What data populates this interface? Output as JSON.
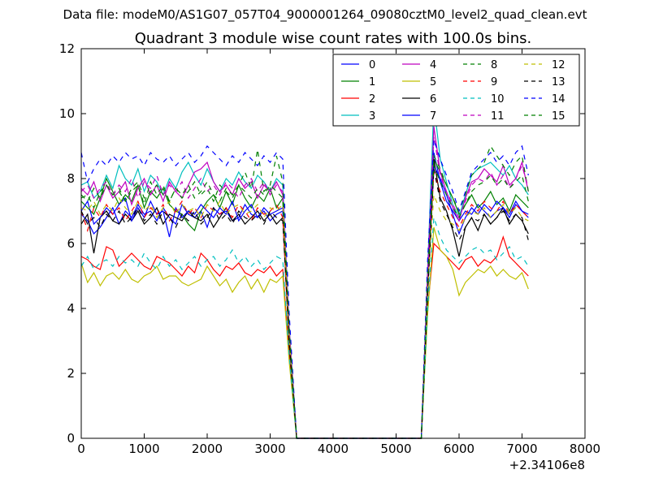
{
  "suptitle": "Data file: modeM0/AS1G07_057T04_9000001264_09080cztM0_level2_quad_clean.evt",
  "chart_data": {
    "type": "line",
    "title": "Quadrant 3 module wise count rates with 100.0s bins.",
    "xlabel": "",
    "ylabel": "",
    "xlim": [
      0,
      8000
    ],
    "ylim": [
      0,
      12
    ],
    "x_offset_label": "+2.34106e8",
    "xticks": [
      0,
      1000,
      2000,
      3000,
      4000,
      5000,
      6000,
      7000,
      8000
    ],
    "yticks": [
      0,
      2,
      4,
      6,
      8,
      10,
      12
    ],
    "grid": false,
    "legend_position": "top-right",
    "legend_columns": 4,
    "x": [
      0,
      100,
      200,
      300,
      400,
      500,
      600,
      700,
      800,
      900,
      1000,
      1100,
      1200,
      1300,
      1400,
      1500,
      1600,
      1700,
      1800,
      1900,
      2000,
      2100,
      2200,
      2300,
      2400,
      2500,
      2600,
      2700,
      2800,
      2900,
      3000,
      3100,
      3200,
      3300,
      3420,
      5400,
      5500,
      5600,
      5700,
      5800,
      5900,
      6000,
      6100,
      6200,
      6300,
      6400,
      6500,
      6600,
      6700,
      6800,
      6900,
      7000,
      7100
    ],
    "series": [
      {
        "name": "0",
        "color": "#0000ff",
        "dash": "solid",
        "values": [
          6.9,
          6.7,
          6.3,
          6.5,
          6.8,
          7.1,
          6.6,
          7.0,
          6.8,
          7.2,
          6.9,
          7.0,
          6.7,
          7.1,
          6.8,
          6.6,
          7.2,
          6.9,
          6.8,
          7.0,
          6.5,
          7.1,
          6.9,
          7.0,
          6.7,
          6.8,
          7.2,
          6.9,
          6.8,
          7.0,
          6.7,
          6.9,
          7.0,
          3.0,
          0,
          0,
          4.5,
          8.8,
          7.9,
          7.3,
          7.0,
          6.7,
          7.0,
          6.9,
          7.2,
          7.0,
          6.8,
          7.0,
          7.1,
          6.9,
          7.3,
          7.0,
          6.8
        ]
      },
      {
        "name": "1",
        "color": "#008000",
        "dash": "solid",
        "values": [
          7.3,
          7.1,
          6.9,
          7.4,
          8.0,
          7.6,
          7.2,
          7.5,
          7.3,
          7.8,
          7.1,
          7.6,
          7.4,
          7.7,
          7.2,
          7.0,
          6.9,
          6.6,
          6.4,
          7.0,
          7.3,
          7.5,
          7.1,
          7.6,
          7.2,
          7.8,
          7.4,
          7.1,
          7.5,
          7.3,
          7.7,
          7.1,
          7.4,
          3.2,
          0,
          0,
          4.8,
          8.6,
          8.2,
          7.8,
          7.4,
          6.9,
          7.2,
          7.5,
          7.1,
          7.3,
          7.6,
          7.2,
          7.4,
          7.0,
          7.5,
          7.3,
          7.1
        ]
      },
      {
        "name": "2",
        "color": "#ff0000",
        "dash": "solid",
        "values": [
          5.6,
          5.5,
          5.3,
          5.2,
          5.9,
          5.8,
          5.3,
          5.5,
          5.7,
          5.5,
          5.3,
          5.2,
          5.6,
          5.5,
          5.4,
          5.2,
          5.0,
          5.3,
          5.1,
          5.7,
          5.5,
          5.2,
          5.0,
          5.3,
          5.2,
          5.4,
          5.1,
          5.0,
          5.2,
          5.1,
          5.3,
          5.0,
          5.2,
          2.6,
          0,
          0,
          4.0,
          6.0,
          5.8,
          5.6,
          5.4,
          5.2,
          5.5,
          5.6,
          5.3,
          5.5,
          5.4,
          5.6,
          6.2,
          5.6,
          5.4,
          5.2,
          5.0
        ]
      },
      {
        "name": "3",
        "color": "#00bfbf",
        "dash": "solid",
        "values": [
          7.8,
          7.9,
          7.4,
          7.6,
          8.1,
          7.7,
          8.4,
          8.0,
          7.8,
          8.3,
          7.6,
          8.1,
          7.9,
          7.5,
          8.0,
          7.7,
          8.2,
          8.5,
          8.1,
          7.8,
          8.3,
          7.9,
          7.6,
          8.0,
          7.8,
          8.2,
          7.9,
          7.7,
          8.1,
          7.9,
          7.6,
          8.0,
          7.8,
          3.5,
          0,
          0,
          5.2,
          10.3,
          8.6,
          7.9,
          7.2,
          6.8,
          7.5,
          8.1,
          8.3,
          8.4,
          8.5,
          8.3,
          8.1,
          8.4,
          8.0,
          7.8,
          7.5
        ]
      },
      {
        "name": "4",
        "color": "#bf00bf",
        "dash": "solid",
        "values": [
          7.7,
          7.5,
          7.9,
          7.3,
          7.8,
          7.4,
          7.6,
          7.9,
          7.2,
          7.7,
          8.0,
          7.5,
          7.8,
          7.3,
          7.9,
          7.6,
          7.4,
          7.8,
          8.2,
          8.3,
          8.5,
          7.9,
          7.6,
          7.8,
          7.5,
          8.0,
          7.7,
          7.9,
          7.4,
          7.8,
          7.6,
          7.9,
          7.5,
          3.4,
          0,
          0,
          5.0,
          9.6,
          8.2,
          7.6,
          7.1,
          6.7,
          7.4,
          7.9,
          8.0,
          8.3,
          8.1,
          7.9,
          8.4,
          7.8,
          8.0,
          8.5,
          7.6
        ]
      },
      {
        "name": "5",
        "color": "#bfbf00",
        "dash": "solid",
        "values": [
          5.4,
          4.8,
          5.1,
          4.7,
          5.0,
          5.1,
          4.9,
          5.2,
          4.9,
          4.8,
          5.0,
          5.1,
          5.3,
          4.9,
          5.0,
          5.0,
          4.8,
          4.7,
          4.8,
          4.9,
          5.3,
          5.0,
          4.7,
          4.9,
          4.5,
          4.8,
          5.0,
          4.6,
          4.9,
          4.5,
          4.9,
          4.8,
          5.0,
          2.4,
          0,
          0,
          3.8,
          6.5,
          5.8,
          5.6,
          5.2,
          4.4,
          4.8,
          5.0,
          5.2,
          5.1,
          5.3,
          5.0,
          5.2,
          5.0,
          4.9,
          5.1,
          4.6
        ]
      },
      {
        "name": "6",
        "color": "#000000",
        "dash": "solid",
        "values": [
          6.6,
          6.9,
          5.7,
          6.8,
          7.0,
          6.7,
          6.6,
          6.9,
          6.7,
          7.0,
          6.6,
          6.8,
          7.1,
          6.6,
          6.9,
          6.8,
          6.7,
          7.0,
          6.8,
          6.7,
          6.9,
          6.5,
          6.8,
          7.1,
          6.7,
          6.9,
          6.6,
          6.8,
          7.0,
          6.7,
          6.9,
          6.6,
          6.8,
          3.0,
          0,
          0,
          4.4,
          8.6,
          7.4,
          7.0,
          6.4,
          5.6,
          6.5,
          6.8,
          6.4,
          6.9,
          6.6,
          6.8,
          7.1,
          6.6,
          6.9,
          6.7,
          6.3
        ]
      },
      {
        "name": "7",
        "color": "#0000ff",
        "dash": "solid",
        "values": [
          7.0,
          7.3,
          6.6,
          6.8,
          7.1,
          6.9,
          7.2,
          7.4,
          6.7,
          7.1,
          6.8,
          7.3,
          6.9,
          7.0,
          6.2,
          7.1,
          6.8,
          7.0,
          6.9,
          7.2,
          7.0,
          6.8,
          7.1,
          6.9,
          7.3,
          6.7,
          7.0,
          7.2,
          6.8,
          7.1,
          6.9,
          7.0,
          7.1,
          3.1,
          0,
          0,
          4.6,
          8.4,
          8.0,
          7.5,
          6.9,
          6.3,
          6.8,
          7.1,
          6.9,
          7.2,
          7.0,
          7.3,
          7.1,
          6.8,
          7.2,
          7.0,
          6.9
        ]
      },
      {
        "name": "8",
        "color": "#008000",
        "dash": "dashed",
        "values": [
          7.4,
          7.5,
          7.1,
          7.6,
          7.8,
          7.5,
          7.7,
          7.3,
          7.6,
          7.8,
          7.2,
          7.9,
          7.5,
          7.8,
          7.3,
          7.7,
          7.4,
          7.6,
          7.9,
          7.5,
          7.7,
          7.3,
          7.8,
          7.6,
          7.4,
          7.8,
          8.2,
          7.7,
          8.9,
          7.6,
          7.8,
          8.7,
          7.9,
          3.5,
          0,
          0,
          5.1,
          8.7,
          8.3,
          7.8,
          7.4,
          7.0,
          7.5,
          8.1,
          8.3,
          8.5,
          9.0,
          8.7,
          8.4,
          8.1,
          8.5,
          8.7,
          7.6
        ]
      },
      {
        "name": "9",
        "color": "#ff0000",
        "dash": "dashed",
        "values": [
          7.0,
          6.4,
          7.1,
          6.8,
          7.2,
          6.9,
          7.1,
          6.7,
          7.0,
          7.3,
          6.8,
          7.1,
          6.9,
          7.2,
          6.7,
          7.0,
          7.3,
          6.9,
          7.1,
          6.8,
          7.2,
          7.0,
          6.9,
          7.1,
          6.8,
          7.2,
          7.0,
          6.7,
          7.1,
          6.9,
          7.0,
          7.2,
          6.8,
          3.1,
          0,
          0,
          4.7,
          8.2,
          7.6,
          7.2,
          6.8,
          6.5,
          6.9,
          7.2,
          7.0,
          7.3,
          7.1,
          7.0,
          7.3,
          6.9,
          7.2,
          7.0,
          6.8
        ]
      },
      {
        "name": "10",
        "color": "#00bfbf",
        "dash": "dashed",
        "values": [
          5.3,
          5.6,
          5.2,
          5.4,
          5.5,
          5.3,
          5.6,
          5.4,
          5.5,
          5.3,
          5.7,
          5.4,
          5.2,
          5.6,
          5.3,
          5.5,
          5.2,
          5.4,
          5.6,
          5.3,
          5.5,
          5.6,
          5.3,
          5.5,
          5.8,
          5.4,
          5.6,
          5.3,
          5.5,
          5.2,
          5.4,
          5.6,
          5.5,
          2.6,
          0,
          0,
          4.0,
          6.8,
          6.2,
          5.8,
          5.6,
          5.4,
          5.6,
          5.8,
          5.9,
          5.7,
          5.8,
          5.5,
          5.7,
          5.9,
          5.5,
          5.6,
          5.3
        ]
      },
      {
        "name": "11",
        "color": "#bf00bf",
        "dash": "dashed",
        "values": [
          7.6,
          7.8,
          7.4,
          7.7,
          7.9,
          7.5,
          7.8,
          7.6,
          8.0,
          7.4,
          7.9,
          7.7,
          8.1,
          7.5,
          7.8,
          7.6,
          7.9,
          7.4,
          7.7,
          8.0,
          7.6,
          7.8,
          7.5,
          7.9,
          7.7,
          7.4,
          7.8,
          8.0,
          7.6,
          7.9,
          7.5,
          7.8,
          7.6,
          3.4,
          0,
          0,
          5.0,
          9.3,
          8.1,
          7.6,
          7.2,
          6.8,
          7.3,
          7.8,
          8.0,
          7.9,
          8.2,
          7.8,
          8.1,
          7.7,
          8.0,
          8.4,
          7.7
        ]
      },
      {
        "name": "12",
        "color": "#bfbf00",
        "dash": "dashed",
        "values": [
          7.1,
          7.0,
          7.3,
          6.9,
          7.2,
          7.0,
          7.4,
          7.1,
          6.9,
          7.3,
          7.0,
          7.2,
          6.8,
          7.1,
          7.3,
          6.9,
          7.2,
          7.0,
          7.1,
          6.8,
          7.2,
          7.0,
          7.3,
          6.9,
          7.1,
          7.2,
          6.9,
          7.0,
          7.2,
          6.8,
          7.1,
          7.0,
          7.2,
          3.2,
          0,
          0,
          4.6,
          7.5,
          7.0,
          6.7,
          6.6,
          6.4,
          6.8,
          7.0,
          6.9,
          7.1,
          6.8,
          7.0,
          7.2,
          6.9,
          7.1,
          6.8,
          6.7
        ]
      },
      {
        "name": "13",
        "color": "#000000",
        "dash": "dashed",
        "values": [
          7.0,
          6.6,
          6.8,
          6.5,
          6.9,
          6.7,
          7.0,
          6.6,
          6.8,
          7.1,
          6.7,
          6.9,
          6.6,
          7.0,
          6.8,
          6.5,
          6.9,
          6.7,
          7.0,
          6.6,
          6.8,
          7.1,
          6.7,
          6.9,
          6.6,
          7.0,
          6.8,
          6.7,
          6.9,
          6.6,
          7.0,
          6.8,
          6.7,
          3.0,
          0,
          0,
          4.4,
          8.3,
          7.3,
          6.9,
          6.5,
          6.1,
          6.5,
          6.8,
          6.7,
          6.9,
          6.6,
          6.8,
          7.0,
          6.7,
          6.9,
          6.8,
          6.1
        ]
      },
      {
        "name": "14",
        "color": "#0000ff",
        "dash": "dashed",
        "values": [
          8.8,
          7.9,
          8.3,
          8.6,
          8.4,
          8.7,
          8.5,
          8.8,
          8.6,
          8.7,
          8.4,
          8.8,
          8.6,
          8.5,
          8.7,
          8.4,
          8.6,
          8.8,
          8.5,
          8.7,
          9.0,
          8.8,
          8.6,
          8.4,
          8.7,
          8.5,
          8.8,
          8.6,
          8.4,
          8.7,
          8.5,
          8.8,
          8.6,
          3.9,
          0,
          0,
          5.5,
          9.2,
          8.6,
          8.1,
          7.6,
          7.0,
          7.6,
          8.2,
          8.4,
          8.6,
          8.8,
          8.5,
          8.7,
          8.4,
          8.8,
          9.0,
          8.1
        ]
      },
      {
        "name": "15",
        "color": "#008000",
        "dash": "dashed",
        "values": [
          7.5,
          7.3,
          7.7,
          7.4,
          7.8,
          7.5,
          7.6,
          7.3,
          7.7,
          7.9,
          7.4,
          7.6,
          7.8,
          7.5,
          7.3,
          7.7,
          7.5,
          7.8,
          7.4,
          7.6,
          7.9,
          7.5,
          7.3,
          7.7,
          7.5,
          7.8,
          7.6,
          7.4,
          7.7,
          7.5,
          7.8,
          7.6,
          7.4,
          3.3,
          0,
          0,
          4.8,
          8.4,
          7.9,
          7.5,
          7.1,
          6.8,
          7.2,
          7.6,
          7.8,
          7.9,
          8.1,
          7.8,
          8.0,
          7.7,
          7.9,
          8.1,
          7.3
        ]
      }
    ]
  }
}
